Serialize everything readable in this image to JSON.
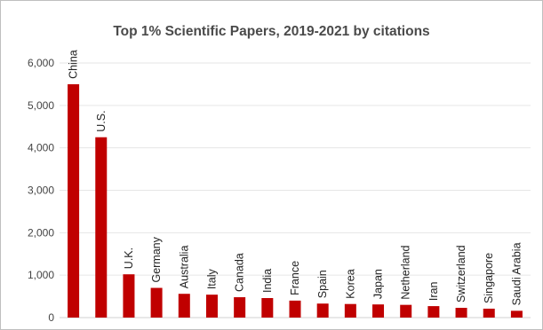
{
  "chart_data": {
    "type": "bar",
    "title": "Top 1% Scientific Papers, 2019-2021 by citations",
    "xlabel": "",
    "ylabel": "",
    "ylim": [
      0,
      6000
    ],
    "yticks": [
      "0",
      "1,000",
      "2,000",
      "3,000",
      "4,000",
      "5,000",
      "6,000"
    ],
    "ytick_values": [
      0,
      1000,
      2000,
      3000,
      4000,
      5000,
      6000
    ],
    "grid": true,
    "legend": "none",
    "bar_color": "#c00000",
    "categories": [
      "China",
      "U.S.",
      "U.K.",
      "Germany",
      "Australia",
      "Italy",
      "Canada",
      "India",
      "France",
      "Spain",
      "Korea",
      "Japan",
      "Netherland",
      "Iran",
      "Switzerland",
      "Singapore",
      "Saudi Arabia"
    ],
    "values": [
      5500,
      4250,
      1020,
      700,
      560,
      540,
      480,
      460,
      400,
      330,
      320,
      310,
      300,
      270,
      230,
      210,
      160
    ]
  }
}
